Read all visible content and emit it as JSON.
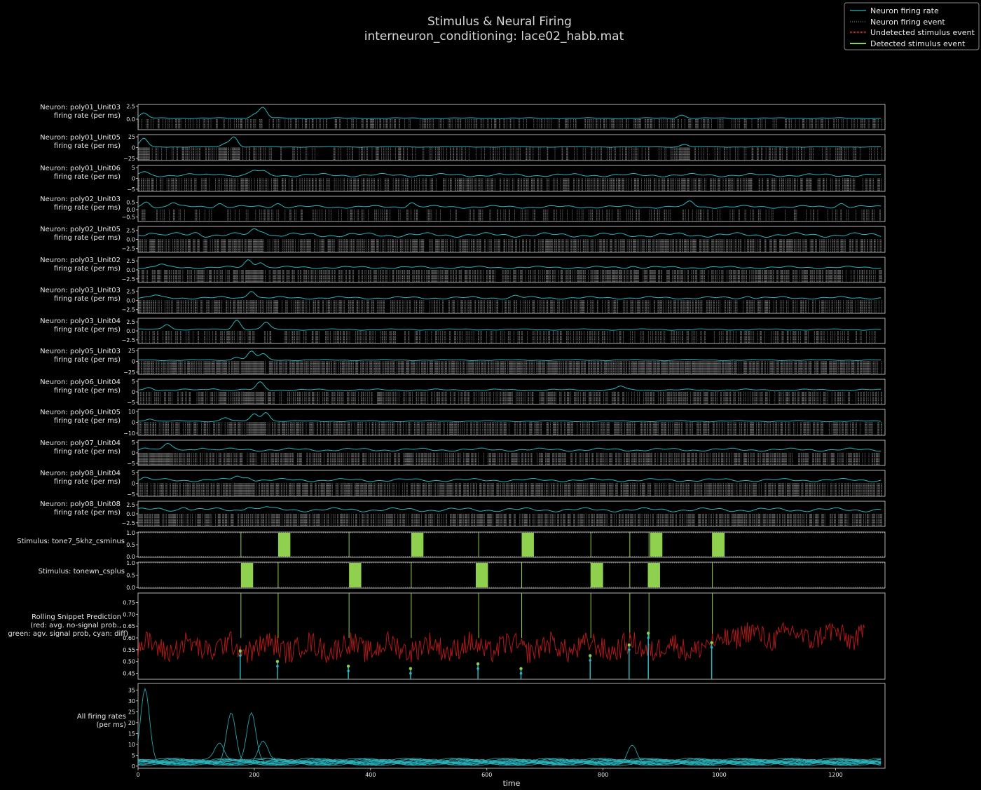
{
  "figure": {
    "title_line1": "Stimulus & Neural Firing",
    "title_line2": "interneuron_conditioning: lace02_habb.mat",
    "xlabel": "time",
    "x_ticks": [
      0,
      200,
      400,
      600,
      800,
      1000,
      1200
    ],
    "x_range": [
      0,
      1285
    ]
  },
  "legend": {
    "placement": "top-right",
    "entries": [
      {
        "label": "Neuron firing rate",
        "color": "#2bb5bd",
        "style": "line"
      },
      {
        "label": "Neuron firing event",
        "color": "#aaaaaa",
        "style": "dotted"
      },
      {
        "label": "Undetected stimulus event",
        "color": "#c62828",
        "style": "dotted"
      },
      {
        "label": "Detected stimulus event",
        "color": "#8fd14f",
        "style": "line"
      }
    ]
  },
  "colors": {
    "rate": "#2bb5bd",
    "event": "#d0d0d0",
    "stim": "#8fd14f",
    "pred_red": "#b01818",
    "marker_green": "#8fd14f"
  },
  "chart_data": {
    "type": "line",
    "neurons": [
      {
        "label_line1": "Neuron: poly01_Unit03",
        "label_line2": "firing rate (per ms)",
        "yticks": [
          "2.5",
          "0.0"
        ],
        "ylim": [
          -2.0,
          2.8
        ],
        "tick_vals": [
          2.5,
          0.0
        ],
        "peaks": [
          [
            10,
            1.2
          ],
          [
            200,
            1.0
          ],
          [
            215,
            2.3
          ],
          [
            935,
            0.9
          ]
        ],
        "base": 0.25,
        "density": 0.32,
        "dense_regions": []
      },
      {
        "label_line1": "Neuron: poly01_Unit05",
        "label_line2": "firing rate (per ms)",
        "yticks": [
          "25",
          "0",
          "−25"
        ],
        "ylim": [
          -30,
          30
        ],
        "tick_vals": [
          25,
          0,
          -25
        ],
        "peaks": [
          [
            10,
            22
          ],
          [
            150,
            10
          ],
          [
            165,
            25
          ],
          [
            940,
            8
          ]
        ],
        "base": 2,
        "density": 0.25,
        "dense_regions": [
          [
            0,
            20
          ],
          [
            140,
            175
          ],
          [
            930,
            950
          ]
        ]
      },
      {
        "label_line1": "Neuron: poly01_Unit06",
        "label_line2": "firing rate (per ms)",
        "yticks": [
          "5",
          "0",
          "−5"
        ],
        "ylim": [
          -6,
          6
        ],
        "tick_vals": [
          5,
          0,
          -5
        ],
        "peaks": [
          [
            10,
            3.5
          ],
          [
            140,
            3
          ],
          [
            200,
            4
          ],
          [
            215,
            3.5
          ]
        ],
        "base": 2,
        "density": 0.45,
        "dense_regions": []
      },
      {
        "label_line1": "Neuron: poly02_Unit03",
        "label_line2": "firing rate (per ms)",
        "yticks": [
          "0.5",
          "0.0",
          "−0.5"
        ],
        "ylim": [
          -0.8,
          0.9
        ],
        "tick_vals": [
          0.5,
          0.0,
          -0.5
        ],
        "peaks": [
          [
            15,
            0.6
          ],
          [
            60,
            0.55
          ],
          [
            140,
            0.5
          ],
          [
            240,
            0.5
          ],
          [
            470,
            0.55
          ],
          [
            950,
            0.6
          ],
          [
            1210,
            0.5
          ]
        ],
        "base": 0.25,
        "density": 0.2,
        "dense_regions": []
      },
      {
        "label_line1": "Neuron: poly02_Unit05",
        "label_line2": "firing rate (per ms)",
        "yticks": [
          "2.5",
          "0.0",
          "−2.5"
        ],
        "ylim": [
          -3.5,
          3.5
        ],
        "tick_vals": [
          2.5,
          0.0,
          -2.5
        ],
        "peaks": [
          [
            20,
            2.6
          ],
          [
            100,
            2.2
          ],
          [
            200,
            3.0
          ],
          [
            215,
            2.8
          ]
        ],
        "base": 1.6,
        "density": 0.55,
        "dense_regions": [
          [
            190,
            215
          ]
        ]
      },
      {
        "label_line1": "Neuron: poly03_Unit02",
        "label_line2": "firing rate (per ms)",
        "yticks": [
          "2.5",
          "0.0",
          "−2.5"
        ],
        "ylim": [
          -3.5,
          3.5
        ],
        "tick_vals": [
          2.5,
          0.0,
          -2.5
        ],
        "peaks": [
          [
            40,
            1.8
          ],
          [
            190,
            3.0
          ],
          [
            210,
            2.5
          ],
          [
            850,
            1.3
          ]
        ],
        "base": 0.9,
        "density": 0.5,
        "dense_regions": [
          [
            185,
            215
          ]
        ]
      },
      {
        "label_line1": "Neuron: poly03_Unit03",
        "label_line2": "firing rate (per ms)",
        "yticks": [
          "2.5",
          "0.0",
          "−2.5"
        ],
        "ylim": [
          -3.5,
          3.5
        ],
        "tick_vals": [
          2.5,
          0.0,
          -2.5
        ],
        "peaks": [
          [
            30,
            1.6
          ],
          [
            195,
            3.0
          ],
          [
            650,
            1.5
          ],
          [
            1050,
            1.4
          ]
        ],
        "base": 0.9,
        "density": 0.45,
        "dense_regions": [
          [
            190,
            205
          ]
        ]
      },
      {
        "label_line1": "Neuron: poly03_Unit04",
        "label_line2": "firing rate (per ms)",
        "yticks": [
          "2.5",
          "0.0",
          "−2.5"
        ],
        "ylim": [
          -3.5,
          3.5
        ],
        "tick_vals": [
          2.5,
          0.0,
          -2.5
        ],
        "peaks": [
          [
            50,
            2.0
          ],
          [
            170,
            3.2
          ],
          [
            220,
            2.5
          ]
        ],
        "base": 0.5,
        "density": 0.3,
        "dense_regions": []
      },
      {
        "label_line1": "Neuron: poly05_Unit03",
        "label_line2": "firing rate (per ms)",
        "yticks": [
          "25",
          "0",
          "−25"
        ],
        "ylim": [
          -30,
          30
        ],
        "tick_vals": [
          25,
          0,
          -25
        ],
        "peaks": [
          [
            170,
            12
          ],
          [
            195,
            24
          ],
          [
            215,
            18
          ],
          [
            940,
            6
          ]
        ],
        "base": 4,
        "density": 0.7,
        "dense_regions": [
          [
            180,
            215
          ],
          [
            850,
            1000
          ]
        ]
      },
      {
        "label_line1": "Neuron: poly06_Unit04",
        "label_line2": "firing rate (per ms)",
        "yticks": [
          "5",
          "0",
          "−5"
        ],
        "ylim": [
          -6,
          6
        ],
        "tick_vals": [
          5,
          0,
          -5
        ],
        "peaks": [
          [
            20,
            2.5
          ],
          [
            130,
            2.2
          ],
          [
            210,
            4.8
          ],
          [
            830,
            3.0
          ]
        ],
        "base": 1.2,
        "density": 0.45,
        "dense_regions": [
          [
            180,
            215
          ]
        ]
      },
      {
        "label_line1": "Neuron: poly06_Unit05",
        "label_line2": "firing rate (per ms)",
        "yticks": [
          "10",
          "0",
          "−10"
        ],
        "ylim": [
          -12,
          12
        ],
        "tick_vals": [
          10,
          0,
          -10
        ],
        "peaks": [
          [
            20,
            4
          ],
          [
            150,
            5
          ],
          [
            200,
            8
          ],
          [
            220,
            10
          ]
        ],
        "base": 1.5,
        "density": 0.5,
        "dense_regions": [
          [
            190,
            220
          ]
        ]
      },
      {
        "label_line1": "Neuron: poly07_Unit04",
        "label_line2": "firing rate (per ms)",
        "yticks": [
          "5",
          "0",
          "−5"
        ],
        "ylim": [
          -6,
          6
        ],
        "tick_vals": [
          5,
          0,
          -5
        ],
        "peaks": [
          [
            10,
            3.5
          ],
          [
            50,
            4.5
          ],
          [
            110,
            3.5
          ]
        ],
        "base": 2,
        "density": 0.55,
        "dense_regions": [
          [
            0,
            60
          ]
        ]
      },
      {
        "label_line1": "Neuron: poly08_Unit04",
        "label_line2": "firing rate (per ms)",
        "yticks": [
          "5",
          "0",
          "−5"
        ],
        "ylim": [
          -6,
          6
        ],
        "tick_vals": [
          5,
          0,
          -5
        ],
        "peaks": [
          [
            10,
            3
          ],
          [
            170,
            4
          ],
          [
            190,
            3.5
          ]
        ],
        "base": 2,
        "density": 0.6,
        "dense_regions": [
          [
            165,
            200
          ]
        ]
      },
      {
        "label_line1": "Neuron: poly08_Unit08",
        "label_line2": "firing rate (per ms)",
        "yticks": [
          "2.5",
          "0.0",
          "−2.5"
        ],
        "ylim": [
          -3.5,
          3.5
        ],
        "tick_vals": [
          2.5,
          0.0,
          -2.5
        ],
        "peaks": [
          [
            80,
            2.5
          ],
          [
            190,
            2.6
          ],
          [
            220,
            2.3
          ]
        ],
        "base": 1.5,
        "density": 0.55,
        "dense_regions": []
      }
    ],
    "stimuli": [
      {
        "label": "Stimulus: tone7_5khz_csminus",
        "yticks": [
          "1.0",
          "0.5",
          "0.0"
        ],
        "blocks": [
          [
            241,
            262
          ],
          [
            470,
            491
          ],
          [
            660,
            681
          ],
          [
            881,
            902
          ],
          [
            988,
            1009
          ]
        ],
        "event_lines": [
          177,
          363,
          586,
          779,
          846,
          879,
          988
        ]
      },
      {
        "label": "Stimulus: tonewn_csplus",
        "yticks": [
          "1.0",
          "0.5",
          "0.0"
        ],
        "blocks": [
          [
            177,
            198
          ],
          [
            363,
            384
          ],
          [
            581,
            602
          ],
          [
            779,
            800
          ],
          [
            877,
            898
          ]
        ],
        "event_lines": [
          241,
          470,
          660,
          779,
          846,
          988
        ]
      }
    ],
    "prediction": {
      "label_line1": "Rolling Snippet Prediction",
      "label_line2": "(red: avg. no-signal prob.,",
      "label_line3": "green: agv. signal prob, cyan: diff)",
      "yticks": [
        "0.75",
        "0.70",
        "0.65",
        "0.60",
        "0.55",
        "0.50",
        "0.45"
      ],
      "ylim": [
        0.425,
        0.79
      ],
      "x_end": 1250,
      "mean": 0.56,
      "event_times": [
        177,
        241,
        363,
        470,
        586,
        660,
        779,
        846,
        879,
        988
      ],
      "marker_values": [
        0.545,
        0.5,
        0.48,
        0.47,
        0.49,
        0.47,
        0.525,
        0.57,
        0.62,
        0.58
      ]
    },
    "all_rates": {
      "label_line1": "All firing rates",
      "label_line2": "(per ms)",
      "yticks": [
        "35",
        "30",
        "25",
        "20",
        "15",
        "10",
        "5",
        "0"
      ],
      "ylim": [
        -1,
        38
      ],
      "big_peaks": [
        [
          12,
          35
        ],
        [
          160,
          24
        ],
        [
          195,
          25
        ],
        [
          215,
          11
        ],
        [
          140,
          10
        ],
        [
          850,
          9
        ]
      ]
    }
  }
}
